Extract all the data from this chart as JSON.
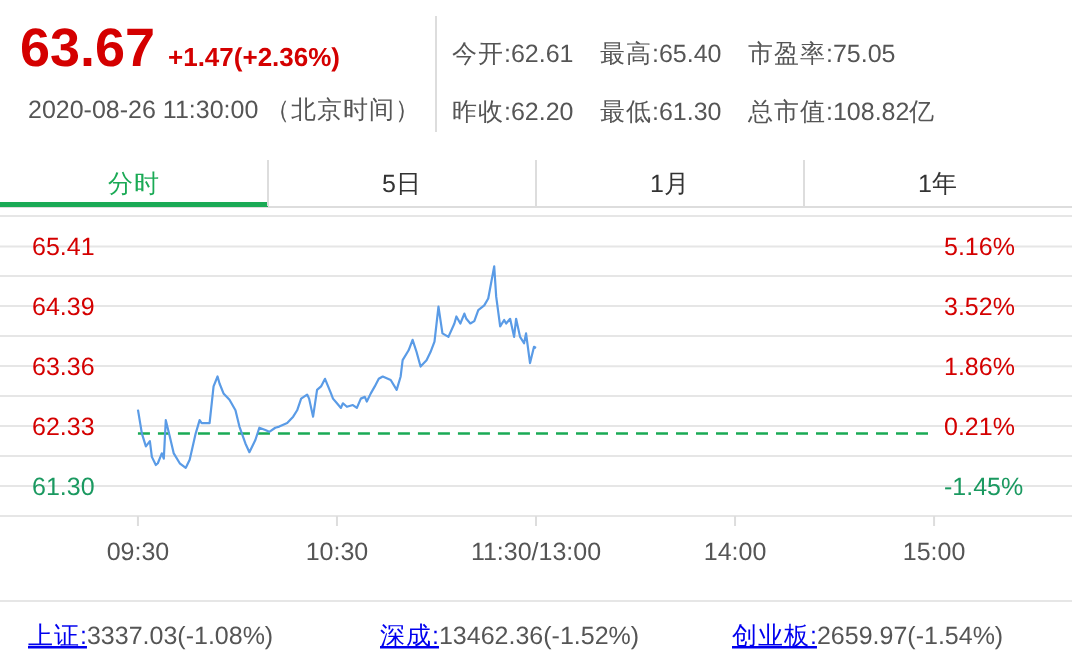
{
  "chart_data": [
    {
      "type": "line",
      "title": "63.67",
      "subtitle": "+1.47(+2.36%)",
      "annotations": [
        "2020-08-26 11:30:00 （北京时间）",
        "今开:62.61",
        "最高:65.40",
        "市盈率:75.05",
        "昨收:62.20",
        "最低:61.30",
        "总市值:108.82亿",
        "分时",
        "5日",
        "1月",
        "1年",
        "上证:3337.03(-1.08%)",
        "深成:13462.36(-1.52%)",
        "创业板:2659.97(-1.54%)"
      ],
      "xlim": [
        8.807,
        11.5
      ],
      "xticks": [
        {
          "value": 9.5,
          "label": "09:30"
        },
        {
          "value": 10.5,
          "label": "10:30"
        },
        {
          "value": 11.5,
          "label": "11:30/13:00"
        }
      ],
      "ylim": [
        60.785,
        65.935
      ],
      "yticks": [
        {
          "value": 60.785,
          "label": null
        },
        {
          "value": 61.3,
          "label": "61.30"
        },
        {
          "value": 61.815,
          "label": null
        },
        {
          "value": 62.33,
          "label": "62.33"
        },
        {
          "value": 62.845,
          "label": null
        },
        {
          "value": 63.36,
          "label": "63.36"
        },
        {
          "value": 63.875,
          "label": null
        },
        {
          "value": 64.39,
          "label": "64.39"
        },
        {
          "value": 64.905,
          "label": null
        },
        {
          "value": 65.41,
          "label": "65.41"
        },
        {
          "value": 65.935,
          "label": null
        }
      ],
      "grid": "y",
      "ref_lines": [
        {
          "axis": "y",
          "value": 62.2,
          "color": "#1aaa55",
          "line_style": "dashed"
        }
      ],
      "series": [
        {
          "color": "#5a9be6",
          "x": [
            9.5,
            9.52,
            9.54,
            9.56,
            9.57,
            9.59,
            9.6,
            9.62,
            9.63,
            9.64,
            9.66,
            9.68,
            9.71,
            9.74,
            9.76,
            9.79,
            9.81,
            9.82,
            9.86,
            9.88,
            9.9,
            9.91,
            9.93,
            9.96,
            9.99,
            10.01,
            10.04,
            10.06,
            10.09,
            10.11,
            10.14,
            10.16,
            10.19,
            10.21,
            10.25,
            10.28,
            10.3,
            10.32,
            10.35,
            10.36,
            10.38,
            10.4,
            10.42,
            10.44,
            10.47,
            10.48,
            10.5,
            10.52,
            10.53,
            10.55,
            10.58,
            10.6,
            10.62,
            10.64,
            10.65,
            10.67,
            10.69,
            10.71,
            10.73,
            10.77,
            10.8,
            10.82,
            10.83,
            10.86,
            10.88,
            10.9,
            10.92,
            10.95,
            10.97,
            10.99,
            11.01,
            11.03,
            11.06,
            11.09,
            11.1,
            11.12,
            11.14,
            11.15,
            11.17,
            11.19,
            11.21,
            11.24,
            11.26,
            11.29,
            11.3,
            11.32,
            11.34,
            11.35,
            11.37,
            11.39,
            11.4,
            11.42,
            11.44,
            11.45,
            11.47,
            11.49,
            11.5
          ],
          "values": [
            62.61,
            62.2,
            61.98,
            62.07,
            61.8,
            61.66,
            61.69,
            61.86,
            61.77,
            62.43,
            62.15,
            61.86,
            61.69,
            61.61,
            61.75,
            62.2,
            62.43,
            62.38,
            62.38,
            63.01,
            63.18,
            63.06,
            62.89,
            62.78,
            62.6,
            62.32,
            62.03,
            61.88,
            62.09,
            62.3,
            62.26,
            62.23,
            62.3,
            62.32,
            62.38,
            62.49,
            62.6,
            62.8,
            62.87,
            62.8,
            62.49,
            62.95,
            63.01,
            63.14,
            62.89,
            62.8,
            62.72,
            62.64,
            62.72,
            62.66,
            62.69,
            62.64,
            62.8,
            62.83,
            62.75,
            62.89,
            63.01,
            63.14,
            63.18,
            63.12,
            62.95,
            63.18,
            63.46,
            63.63,
            63.81,
            63.6,
            63.35,
            63.46,
            63.6,
            63.78,
            64.38,
            63.92,
            63.86,
            64.09,
            64.21,
            64.09,
            64.26,
            64.17,
            64.09,
            64.13,
            64.32,
            64.4,
            64.52,
            65.07,
            64.55,
            64.04,
            64.15,
            64.09,
            64.17,
            63.86,
            64.17,
            63.86,
            63.75,
            63.92,
            63.41,
            63.69,
            63.67
          ]
        }
      ]
    },
    {
      "type": "line",
      "xlim": [
        13,
        15.693
      ],
      "xticks": [
        {
          "value": 13,
          "label": null
        },
        {
          "value": 14,
          "label": "14:00"
        },
        {
          "value": 15,
          "label": "15:00"
        }
      ],
      "y2lim": [
        -2.275,
        6.005
      ],
      "y2ticks": [
        {
          "value": -2.275,
          "label": null
        },
        {
          "value": -1.45,
          "label": "-1.45%"
        },
        {
          "value": -0.619,
          "label": null
        },
        {
          "value": 0.21,
          "label": "0.21%"
        },
        {
          "value": 1.037,
          "label": null
        },
        {
          "value": 1.86,
          "label": "1.86%"
        },
        {
          "value": 2.693,
          "label": null
        },
        {
          "value": 3.52,
          "label": "3.52%"
        },
        {
          "value": 4.349,
          "label": null
        },
        {
          "value": 5.16,
          "label": "5.16%"
        },
        {
          "value": 6.005,
          "label": null
        }
      ],
      "grid": "y",
      "ref_lines": [
        {
          "axis": "y2",
          "value": 0,
          "color": "#1aaa55",
          "line_style": "dashed"
        }
      ]
    }
  ]
}
